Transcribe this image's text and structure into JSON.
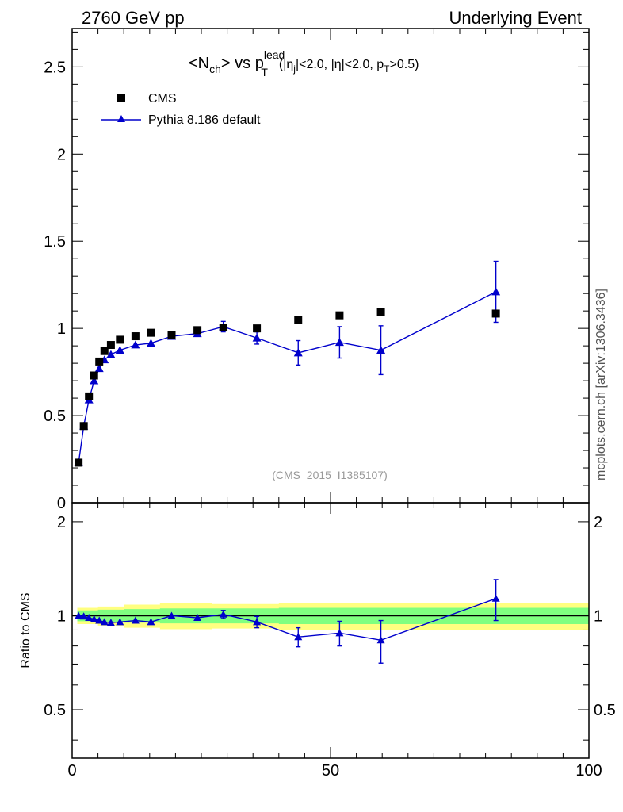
{
  "header": {
    "left": "2760 GeV pp",
    "right": "Underlying Event"
  },
  "title_parts": {
    "n_open": "<N",
    "n_sub": "ch",
    "n_close": "> vs p",
    "p_sup": "lead",
    "p_sub": "T",
    "cuts_open": "(|η",
    "cuts_sub1": "j",
    "cuts_mid": "|<2.0, |η|<2.0, p",
    "cuts_sub2": "T",
    "cuts_close": ">0.5)"
  },
  "reference_label": "(CMS_2015_I1385107)",
  "side_label": "mcplots.cern.ch [arXiv:1306.3436]",
  "ratio_ylabel": "Ratio to CMS",
  "colors": {
    "data": "#000000",
    "mc": "#0000cc",
    "band_inner": "#80ff80",
    "band_outer": "#ffff80",
    "reference_text": "#999999"
  },
  "chart_data": [
    {
      "type": "scatter",
      "panel": "main",
      "title": "<Nch> vs pT lead (|ηj|<2.0, |η|<2.0, pT>0.5)",
      "xlim": [
        0,
        100
      ],
      "ylim": [
        0,
        2.72
      ],
      "yticks": [
        "0",
        "0.5",
        "1",
        "1.5",
        "2",
        "2.5"
      ],
      "legend": [
        "CMS",
        "Pythia 8.186 default"
      ],
      "legend_position": "top-left",
      "series": [
        {
          "name": "CMS",
          "marker": "square",
          "x": [
            1.25,
            2.25,
            3.25,
            4.25,
            5.25,
            6.25,
            7.5,
            9.25,
            12.25,
            15.25,
            19.25,
            24.25,
            29.25,
            35.75,
            43.75,
            51.75,
            59.75,
            82.0
          ],
          "y": [
            0.23,
            0.44,
            0.61,
            0.73,
            0.81,
            0.87,
            0.905,
            0.935,
            0.955,
            0.975,
            0.96,
            0.99,
            1.005,
            1.0,
            1.05,
            1.075,
            1.095,
            1.085
          ]
        },
        {
          "name": "Pythia 8.186 default",
          "marker": "triangle",
          "x": [
            1.25,
            2.25,
            3.25,
            4.25,
            5.25,
            6.25,
            7.5,
            9.25,
            12.25,
            15.25,
            19.25,
            24.25,
            29.25,
            35.75,
            43.75,
            51.75,
            59.75,
            82.0
          ],
          "y": [
            0.23,
            0.44,
            0.59,
            0.7,
            0.77,
            0.82,
            0.85,
            0.875,
            0.905,
            0.915,
            0.955,
            0.97,
            1.01,
            0.945,
            0.86,
            0.92,
            0.875,
            1.21
          ],
          "err": [
            0,
            0,
            0,
            0,
            0,
            0,
            0,
            0,
            0,
            0,
            0,
            0,
            0.03,
            0.035,
            0.07,
            0.09,
            0.14,
            0.175
          ]
        }
      ]
    },
    {
      "type": "line",
      "panel": "ratio",
      "ylabel": "Ratio to CMS",
      "xlim": [
        0,
        100
      ],
      "ylim": [
        0.35,
        2.3
      ],
      "xticks": [
        "0",
        "50",
        "100"
      ],
      "yticks": [
        "0.5",
        "1",
        "2"
      ],
      "series": [
        {
          "name": "Pythia 8.186 default",
          "x": [
            1.25,
            2.25,
            3.25,
            4.25,
            5.25,
            6.25,
            7.5,
            9.25,
            12.25,
            15.25,
            19.25,
            24.25,
            29.25,
            35.75,
            43.75,
            51.75,
            59.75,
            82.0
          ],
          "y": [
            1.0,
            0.995,
            0.985,
            0.975,
            0.965,
            0.955,
            0.95,
            0.955,
            0.965,
            0.955,
            1.0,
            0.985,
            1.01,
            0.955,
            0.855,
            0.88,
            0.835,
            1.135
          ],
          "err": [
            0,
            0,
            0,
            0,
            0,
            0,
            0,
            0,
            0,
            0,
            0,
            0,
            0.03,
            0.04,
            0.06,
            0.08,
            0.13,
            0.17
          ]
        }
      ],
      "bands": {
        "x": [
          1,
          2,
          5,
          10,
          17,
          27,
          40,
          60,
          100
        ],
        "inner": [
          0.04,
          0.04,
          0.045,
          0.05,
          0.055,
          0.055,
          0.06,
          0.06,
          0.06
        ],
        "outer": [
          0.06,
          0.06,
          0.07,
          0.085,
          0.095,
          0.09,
          0.1,
          0.1,
          0.1
        ]
      }
    }
  ]
}
